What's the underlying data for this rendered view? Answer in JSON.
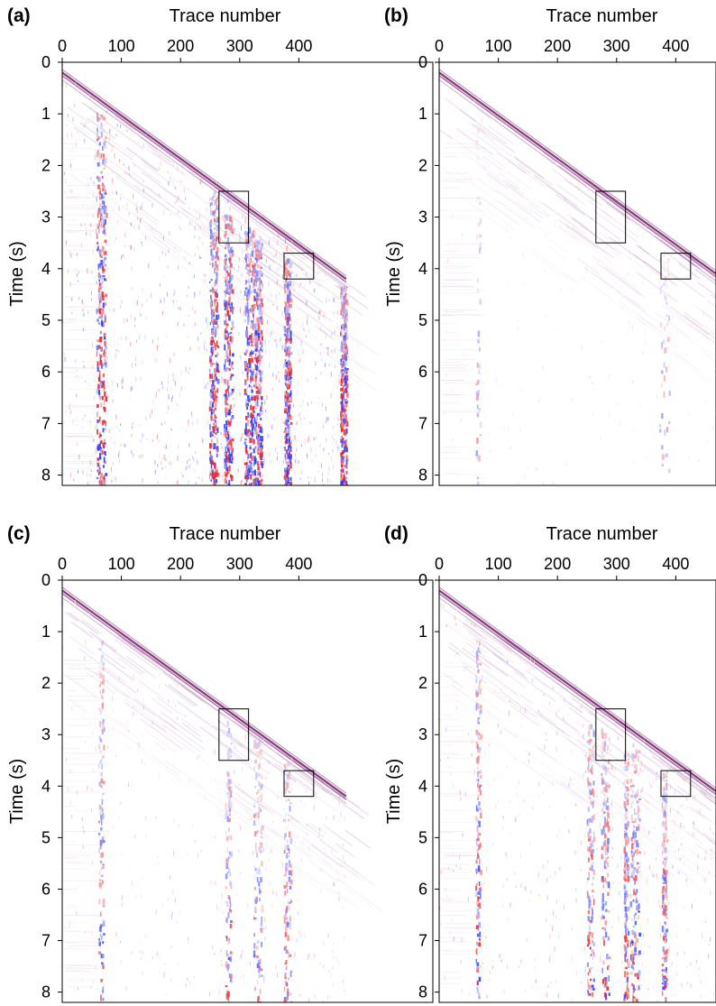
{
  "chart_data": [
    {
      "type": "heatmap",
      "panel_label": "(a)",
      "xlabel": "Trace number",
      "ylabel": "Time (s)",
      "x_ticks": [
        "0",
        "100",
        "200",
        "300",
        "400"
      ],
      "y_ticks": [
        "0",
        "1",
        "2",
        "3",
        "4",
        "5",
        "6",
        "7",
        "8"
      ],
      "xlim": [
        0,
        480
      ],
      "ylim": [
        0,
        8.2
      ],
      "x_axis_position": "top",
      "y_axis_inverted": true,
      "colormap": [
        "#2a3cff",
        "#ffffff",
        "#e8262a"
      ],
      "first_arrival": {
        "trace": [
          0,
          480
        ],
        "time": [
          0.2,
          4.2
        ]
      },
      "noise_level": 1.0,
      "noisy_traces": [
        65,
        255,
        280,
        315,
        330,
        380,
        475
      ],
      "highlight_boxes": [
        {
          "trace": [
            265,
            315
          ],
          "time": [
            2.5,
            3.5
          ]
        },
        {
          "trace": [
            375,
            425
          ],
          "time": [
            3.7,
            4.2
          ]
        }
      ]
    },
    {
      "type": "heatmap",
      "panel_label": "(b)",
      "xlabel": "Trace number",
      "ylabel": "Time (s)",
      "x_ticks": [
        "0",
        "100",
        "200",
        "300",
        "400"
      ],
      "y_ticks": [
        "0",
        "1",
        "2",
        "3",
        "4",
        "5",
        "6",
        "7",
        "8"
      ],
      "xlim": [
        0,
        480
      ],
      "ylim": [
        0,
        8.2
      ],
      "x_axis_position": "top",
      "y_axis_inverted": true,
      "colormap": [
        "#2a3cff",
        "#ffffff",
        "#e8262a"
      ],
      "first_arrival": {
        "trace": [
          0,
          480
        ],
        "time": [
          0.2,
          4.2
        ]
      },
      "noise_level": 0.12,
      "noisy_traces": [
        65,
        380
      ],
      "highlight_boxes": [
        {
          "trace": [
            265,
            315
          ],
          "time": [
            2.5,
            3.5
          ]
        },
        {
          "trace": [
            375,
            425
          ],
          "time": [
            3.7,
            4.2
          ]
        }
      ]
    },
    {
      "type": "heatmap",
      "panel_label": "(c)",
      "xlabel": "Trace number",
      "ylabel": "Time (s)",
      "x_ticks": [
        "0",
        "100",
        "200",
        "300",
        "400"
      ],
      "y_ticks": [
        "0",
        "1",
        "2",
        "3",
        "4",
        "5",
        "6",
        "7",
        "8"
      ],
      "xlim": [
        0,
        480
      ],
      "ylim": [
        0,
        8.2
      ],
      "x_axis_position": "top",
      "y_axis_inverted": true,
      "colormap": [
        "#2a3cff",
        "#ffffff",
        "#e8262a"
      ],
      "first_arrival": {
        "trace": [
          0,
          480
        ],
        "time": [
          0.2,
          4.2
        ]
      },
      "noise_level": 0.35,
      "noisy_traces": [
        65,
        280,
        330,
        380
      ],
      "highlight_boxes": [
        {
          "trace": [
            265,
            315
          ],
          "time": [
            2.5,
            3.5
          ]
        },
        {
          "trace": [
            375,
            425
          ],
          "time": [
            3.7,
            4.2
          ]
        }
      ]
    },
    {
      "type": "heatmap",
      "panel_label": "(d)",
      "xlabel": "Trace number",
      "ylabel": "Time (s)",
      "x_ticks": [
        "0",
        "100",
        "200",
        "300",
        "400"
      ],
      "y_ticks": [
        "0",
        "1",
        "2",
        "3",
        "4",
        "5",
        "6",
        "7",
        "8"
      ],
      "xlim": [
        0,
        480
      ],
      "ylim": [
        0,
        8.2
      ],
      "x_axis_position": "top",
      "y_axis_inverted": true,
      "colormap": [
        "#2a3cff",
        "#ffffff",
        "#e8262a"
      ],
      "first_arrival": {
        "trace": [
          0,
          480
        ],
        "time": [
          0.2,
          4.2
        ]
      },
      "noise_level": 0.5,
      "noisy_traces": [
        65,
        255,
        280,
        315,
        330,
        380
      ],
      "highlight_boxes": [
        {
          "trace": [
            265,
            315
          ],
          "time": [
            2.5,
            3.5
          ]
        },
        {
          "trace": [
            375,
            425
          ],
          "time": [
            3.7,
            4.2
          ]
        }
      ]
    }
  ]
}
